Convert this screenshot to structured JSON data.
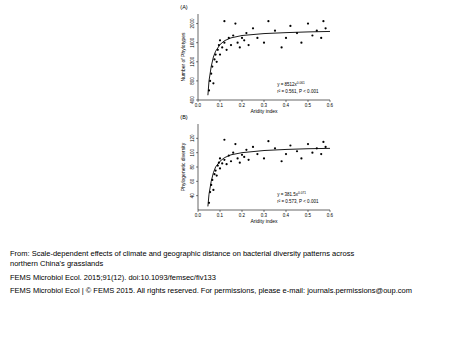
{
  "chart_data": [
    {
      "type": "scatter",
      "title": "(A)",
      "x_label": "Aridity index",
      "y_label": "Number of Phylotypes",
      "xlim": [
        0,
        0.6
      ],
      "xticks": [
        {
          "value": 0,
          "label": "0.0"
        },
        {
          "value": 0.1,
          "label": "0.1"
        },
        {
          "value": 0.2,
          "label": "0.2"
        },
        {
          "value": 0.3,
          "label": "0.3"
        },
        {
          "value": 0.4,
          "label": "0.4"
        },
        {
          "value": 0.5,
          "label": "0.5"
        },
        {
          "value": 0.6,
          "label": "0.6"
        }
      ],
      "ylim": [
        400,
        2200
      ],
      "yticks": [
        400,
        800,
        1200,
        1600,
        2000
      ],
      "grid": false,
      "series": [
        {
          "type": "scatter",
          "marker": "circle",
          "color": "#000000",
          "x": [
            0.05,
            0.055,
            0.06,
            0.065,
            0.07,
            0.075,
            0.08,
            0.085,
            0.09,
            0.095,
            0.1,
            0.1,
            0.11,
            0.12,
            0.12,
            0.13,
            0.14,
            0.15,
            0.16,
            0.17,
            0.18,
            0.19,
            0.2,
            0.21,
            0.22,
            0.23,
            0.25,
            0.27,
            0.3,
            0.32,
            0.35,
            0.38,
            0.4,
            0.42,
            0.45,
            0.47,
            0.5,
            0.52,
            0.54,
            0.56,
            0.57,
            0.58
          ],
          "values": [
            600,
            800,
            950,
            1100,
            750,
            1250,
            1350,
            1200,
            1450,
            1550,
            1350,
            1650,
            1500,
            1600,
            2050,
            1450,
            1700,
            1550,
            1750,
            2000,
            1600,
            1500,
            1700,
            1650,
            1800,
            1550,
            1900,
            1700,
            1600,
            2050,
            1850,
            1500,
            1700,
            1950,
            1800,
            1600,
            2000,
            1750,
            1850,
            1700,
            2050,
            1900
          ]
        },
        {
          "type": "line",
          "line_style": "solid",
          "color": "#000000",
          "x": [
            0.045,
            0.05,
            0.06,
            0.07,
            0.08,
            0.1,
            0.12,
            0.15,
            0.2,
            0.3,
            0.4,
            0.5,
            0.6
          ],
          "values": [
            500,
            800,
            1100,
            1300,
            1420,
            1560,
            1640,
            1700,
            1750,
            1790,
            1810,
            1825,
            1835
          ]
        }
      ],
      "annotations": [
        {
          "text": "y = 8512x",
          "superscript": "0.061"
        },
        {
          "text": "r² = 0.561, P < 0.001"
        }
      ]
    },
    {
      "type": "scatter",
      "title": "(B)",
      "x_label": "Aridity index",
      "y_label": "Phylogenetic diversity",
      "xlim": [
        0,
        0.6
      ],
      "xticks": [
        {
          "value": 0,
          "label": "0.0"
        },
        {
          "value": 0.1,
          "label": "0.1"
        },
        {
          "value": 0.2,
          "label": "0.2"
        },
        {
          "value": 0.3,
          "label": "0.3"
        },
        {
          "value": 0.4,
          "label": "0.4"
        },
        {
          "value": 0.5,
          "label": "0.5"
        },
        {
          "value": 0.6,
          "label": "0.6"
        }
      ],
      "ylim": [
        20,
        140
      ],
      "yticks": [
        40,
        60,
        80,
        100,
        120
      ],
      "grid": false,
      "series": [
        {
          "type": "scatter",
          "marker": "circle",
          "color": "#000000",
          "x": [
            0.05,
            0.055,
            0.06,
            0.065,
            0.07,
            0.075,
            0.08,
            0.085,
            0.09,
            0.095,
            0.1,
            0.1,
            0.11,
            0.12,
            0.12,
            0.13,
            0.14,
            0.15,
            0.16,
            0.17,
            0.18,
            0.19,
            0.2,
            0.21,
            0.22,
            0.23,
            0.25,
            0.27,
            0.3,
            0.32,
            0.35,
            0.38,
            0.4,
            0.42,
            0.45,
            0.47,
            0.5,
            0.52,
            0.54,
            0.56,
            0.57,
            0.58
          ],
          "values": [
            30,
            45,
            55,
            62,
            48,
            70,
            75,
            68,
            82,
            86,
            78,
            92,
            85,
            90,
            118,
            84,
            96,
            88,
            100,
            112,
            92,
            86,
            97,
            94,
            104,
            90,
            108,
            98,
            92,
            116,
            106,
            88,
            98,
            110,
            102,
            92,
            112,
            100,
            106,
            98,
            115,
            108
          ]
        },
        {
          "type": "line",
          "line_style": "solid",
          "color": "#000000",
          "x": [
            0.045,
            0.05,
            0.06,
            0.07,
            0.08,
            0.1,
            0.12,
            0.15,
            0.2,
            0.3,
            0.4,
            0.5,
            0.6
          ],
          "values": [
            25,
            42,
            60,
            72,
            80,
            88,
            93,
            97,
            100,
            103,
            104.5,
            105.5,
            106
          ]
        }
      ],
      "annotations": [
        {
          "text": "y = 381.5x",
          "superscript": "0.071"
        },
        {
          "text": "r² = 0.573, P < 0.001"
        }
      ]
    }
  ],
  "caption": [
    "From: Scale-dependent effects of climate and geographic distance on bacterial diversity patterns across",
    "northern China's grasslands",
    "FEMS Microbiol Ecol. 2015;91(12). doi:10.1093/femsec/fiv133",
    "FEMS Microbiol Ecol | © FEMS 2015. All rights reserved. For permissions, please e-mail: journals.permissions@oup.com"
  ]
}
